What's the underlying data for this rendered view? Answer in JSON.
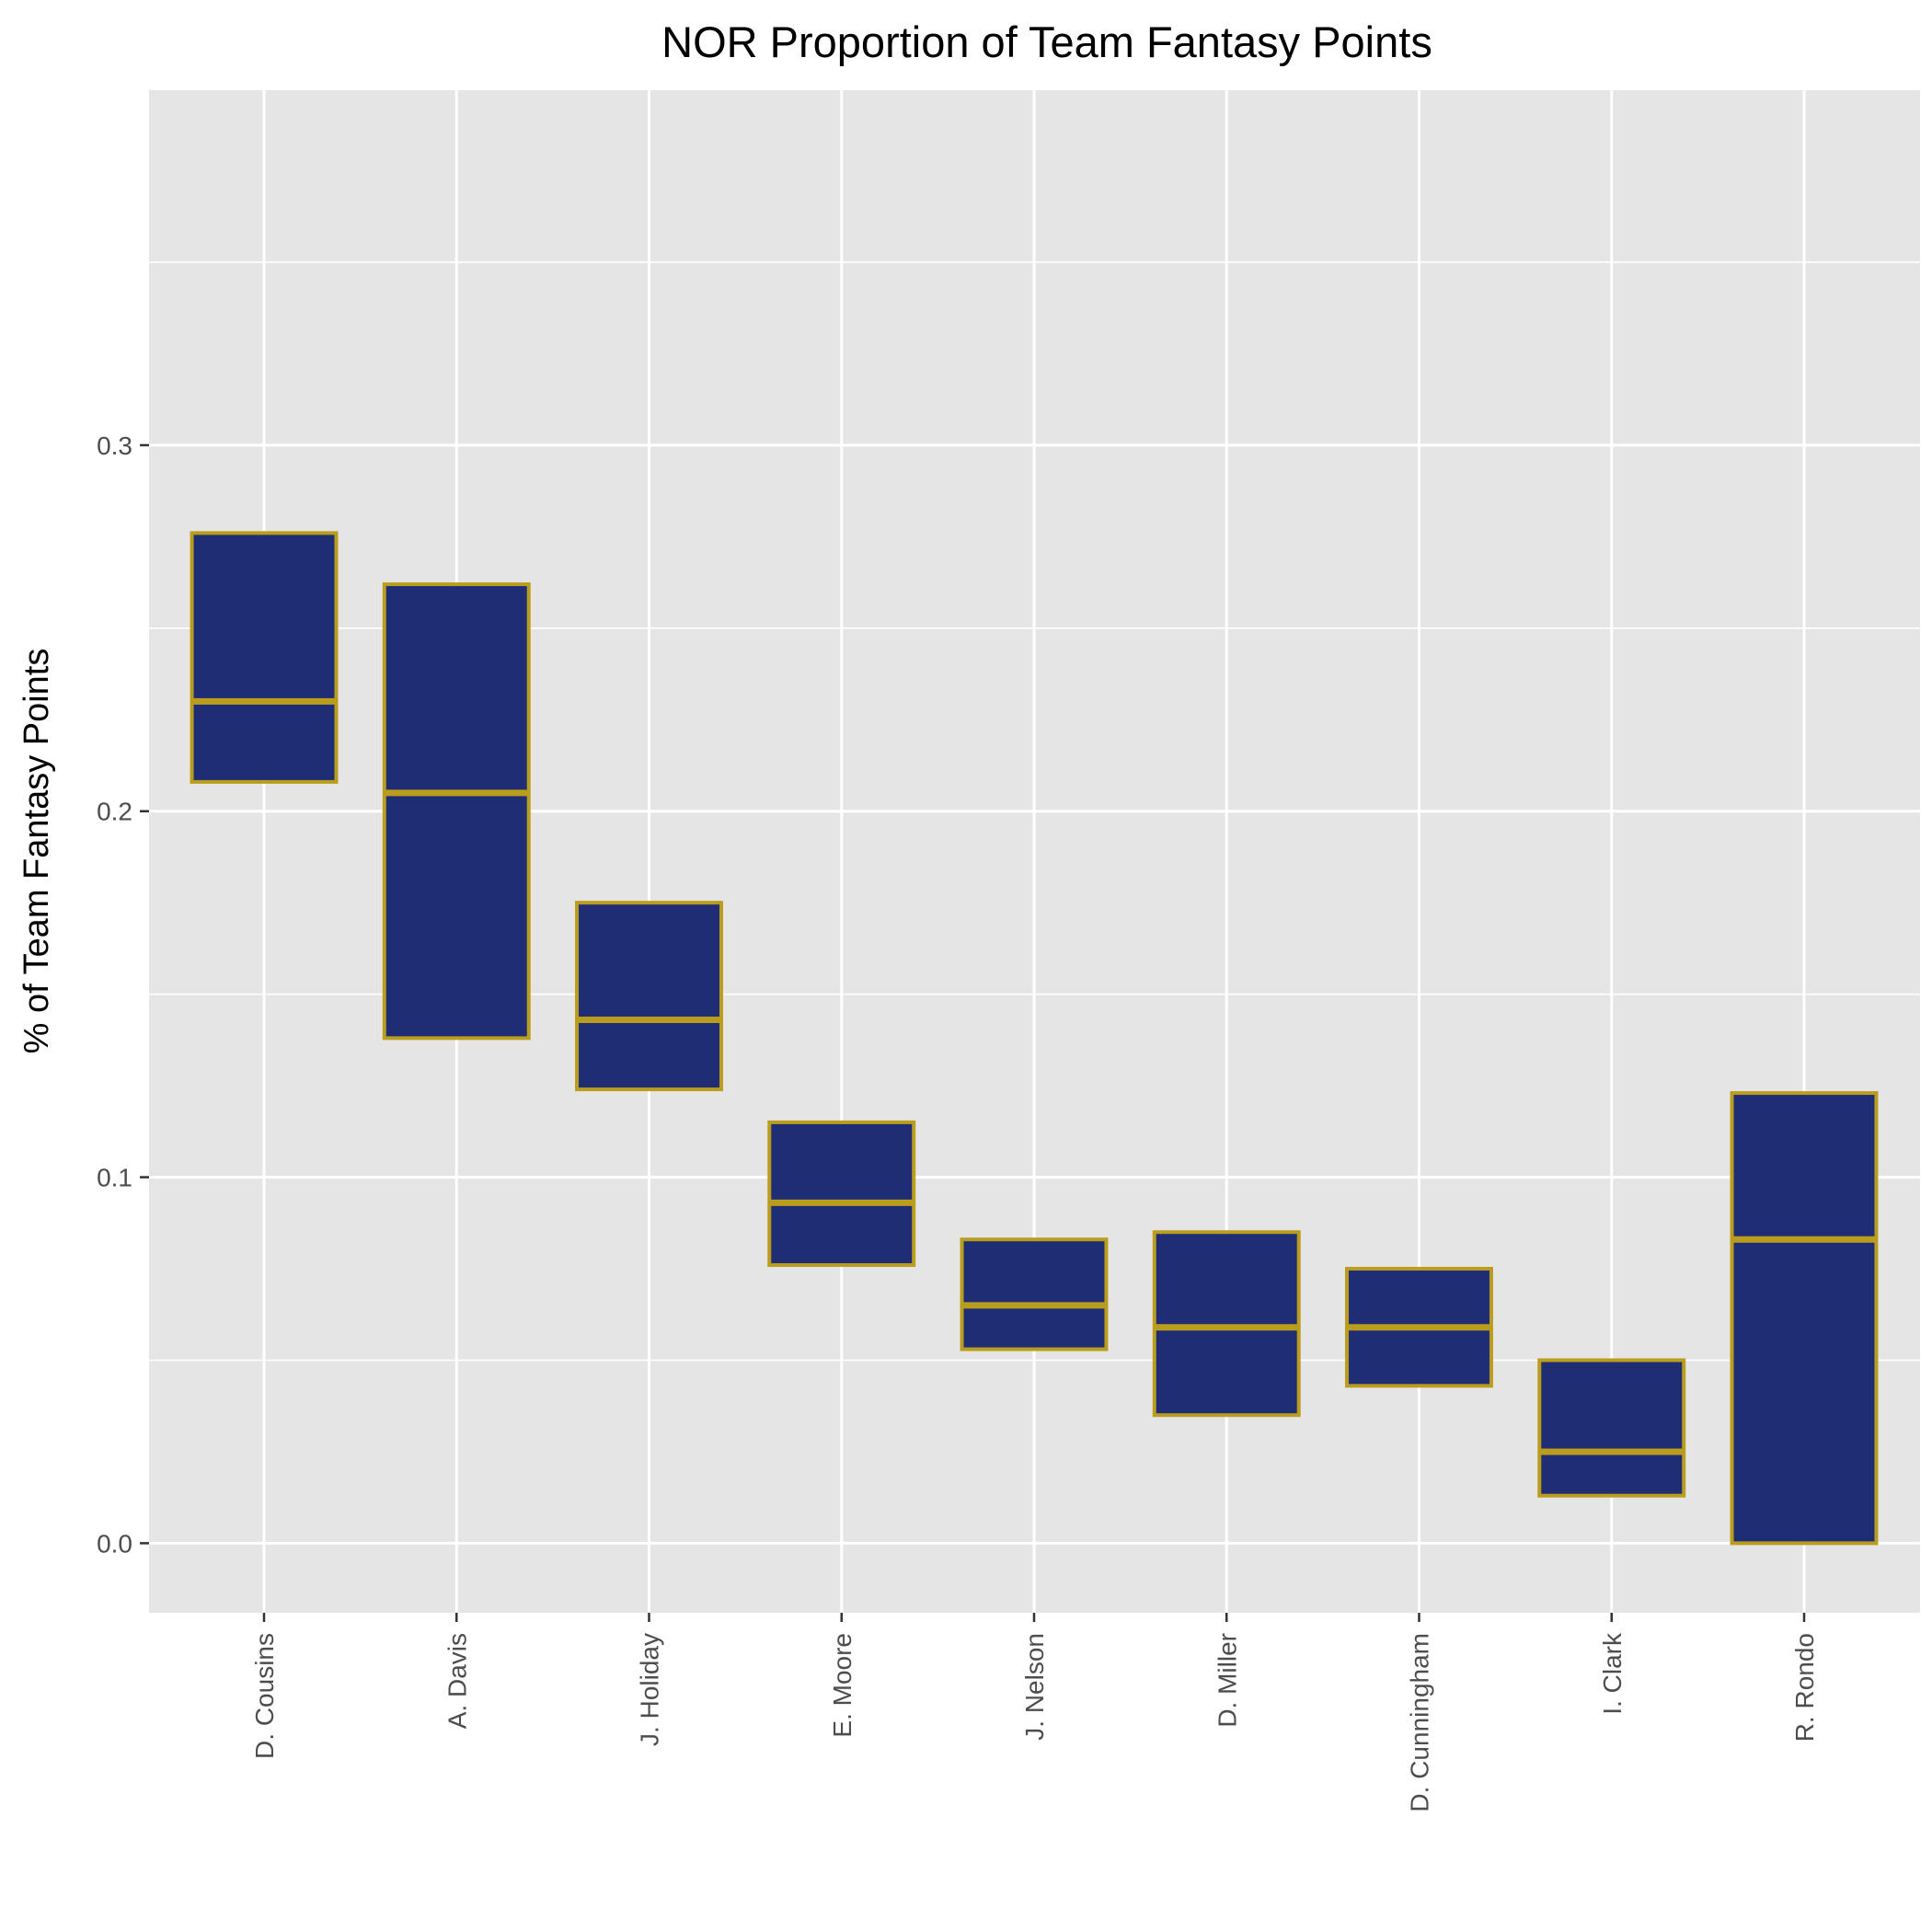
{
  "chart_data": {
    "type": "box",
    "title": "NOR Proportion of Team Fantasy Points",
    "xlabel": "",
    "ylabel": "% of Team Fantasy Points",
    "ylim": [
      -0.019,
      0.397
    ],
    "yticks": [
      0.0,
      0.1,
      0.2,
      0.3
    ],
    "ytick_labels": [
      "0.0",
      "0.1",
      "0.2",
      "0.3"
    ],
    "yminor": [
      0.05,
      0.15,
      0.25,
      0.35
    ],
    "grid": true,
    "legend": "none",
    "colors": {
      "fill": "#1f2d75",
      "outline": "#bb9d1d",
      "panel": "#e5e5e5",
      "grid": "#ffffff"
    },
    "categories": [
      "D. Cousins",
      "A. Davis",
      "J. Holiday",
      "E. Moore",
      "J. Nelson",
      "D. Miller",
      "D. Cunningham",
      "I. Clark",
      "R. Rondo"
    ],
    "boxes": [
      {
        "label": "D. Cousins",
        "q1": 0.208,
        "median": 0.23,
        "q3": 0.276
      },
      {
        "label": "A. Davis",
        "q1": 0.138,
        "median": 0.205,
        "q3": 0.262
      },
      {
        "label": "J. Holiday",
        "q1": 0.124,
        "median": 0.143,
        "q3": 0.175
      },
      {
        "label": "E. Moore",
        "q1": 0.076,
        "median": 0.093,
        "q3": 0.115
      },
      {
        "label": "J. Nelson",
        "q1": 0.053,
        "median": 0.065,
        "q3": 0.083
      },
      {
        "label": "D. Miller",
        "q1": 0.035,
        "median": 0.059,
        "q3": 0.085
      },
      {
        "label": "D. Cunningham",
        "q1": 0.043,
        "median": 0.059,
        "q3": 0.075
      },
      {
        "label": "I. Clark",
        "q1": 0.013,
        "median": 0.025,
        "q3": 0.05
      },
      {
        "label": "R. Rondo",
        "q1": 0.0,
        "median": 0.083,
        "q3": 0.123
      }
    ]
  }
}
